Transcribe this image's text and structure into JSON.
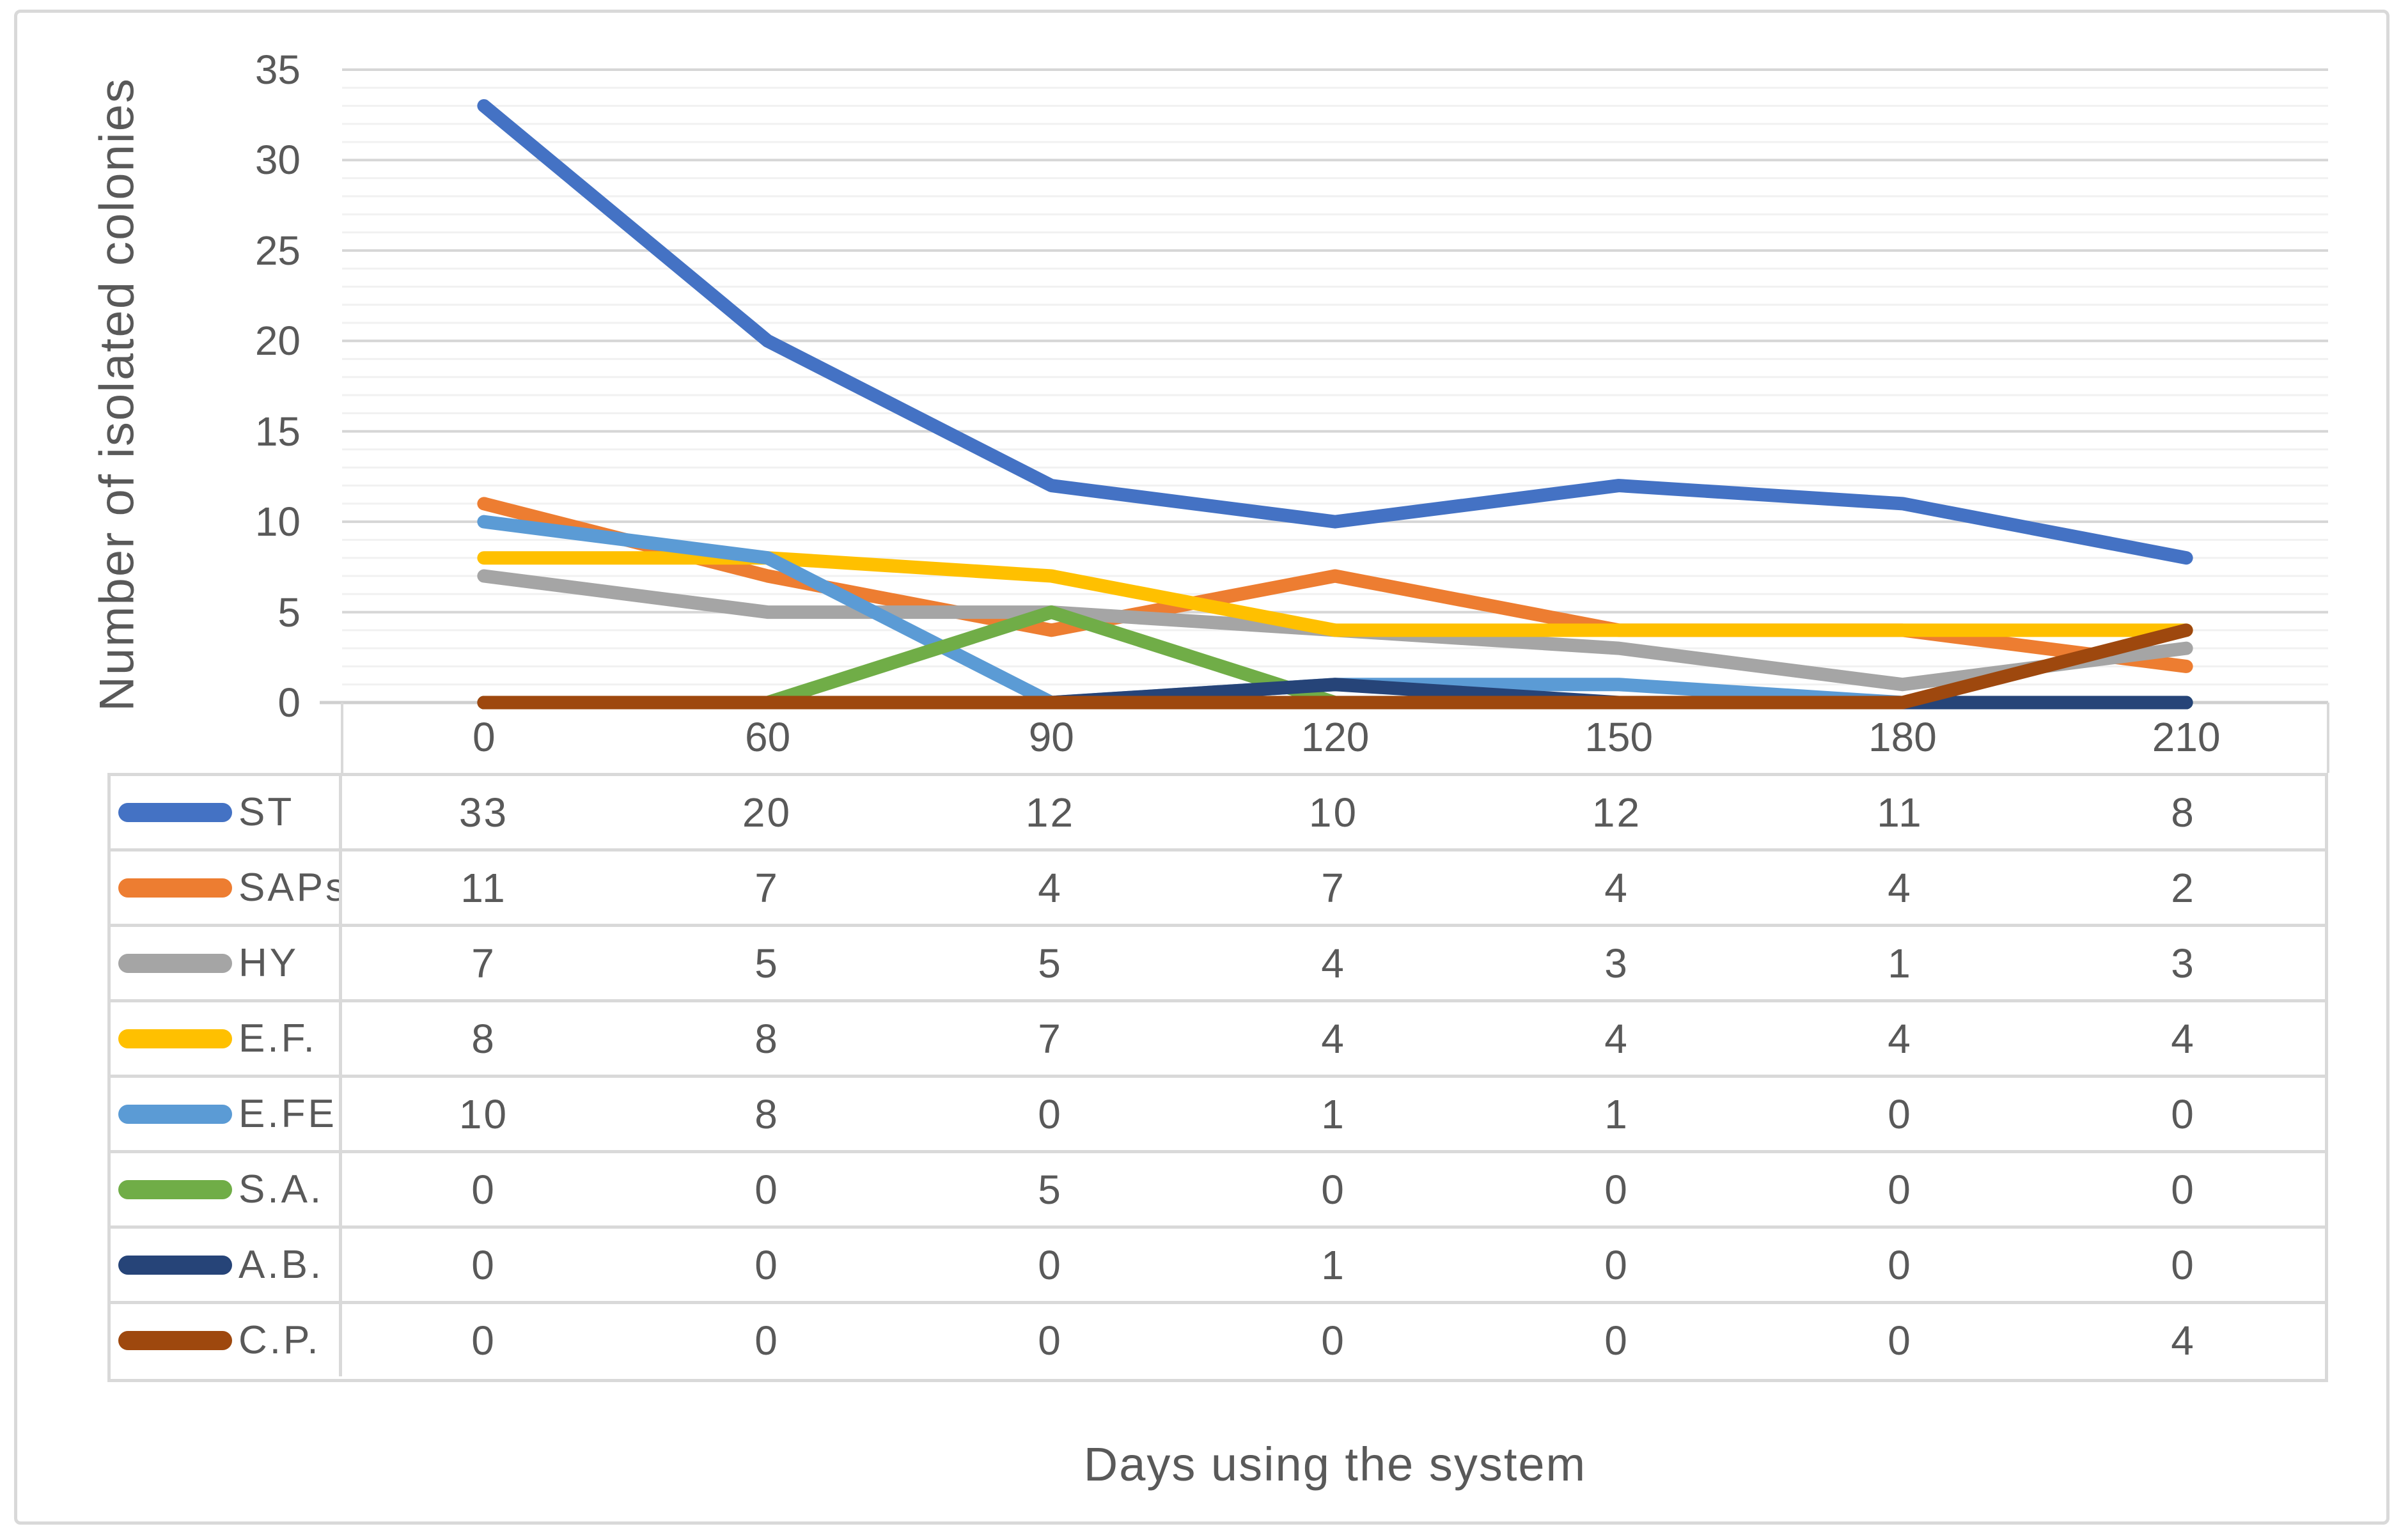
{
  "chart_data": {
    "type": "line",
    "title": "",
    "xlabel": "Days using the system",
    "ylabel": "Number of isolated colonies",
    "categories": [
      "0",
      "60",
      "90",
      "120",
      "150",
      "180",
      "210"
    ],
    "series": [
      {
        "name": "ST",
        "color": "#4472C4",
        "values": [
          33,
          20,
          12,
          10,
          12,
          11,
          8
        ]
      },
      {
        "name": "SAPs",
        "color": "#ED7D31",
        "values": [
          11,
          7,
          4,
          7,
          4,
          4,
          2
        ]
      },
      {
        "name": "HY",
        "color": "#A5A5A5",
        "values": [
          7,
          5,
          5,
          4,
          3,
          1,
          3
        ]
      },
      {
        "name": "E.F.",
        "color": "#FFC000",
        "values": [
          8,
          8,
          7,
          4,
          4,
          4,
          4
        ]
      },
      {
        "name": "E.FE.",
        "color": "#5B9BD5",
        "values": [
          10,
          8,
          0,
          1,
          1,
          0,
          0
        ]
      },
      {
        "name": "S.A.",
        "color": "#70AD47",
        "values": [
          0,
          0,
          5,
          0,
          0,
          0,
          0
        ]
      },
      {
        "name": "A.B.",
        "color": "#264478",
        "values": [
          0,
          0,
          0,
          1,
          0,
          0,
          0
        ]
      },
      {
        "name": "C.P.",
        "color": "#9E480E",
        "values": [
          0,
          0,
          0,
          0,
          0,
          0,
          4
        ]
      }
    ],
    "ylim": [
      0,
      35
    ],
    "y_major_step": 5,
    "y_minor_step": 1,
    "y_tick_labels": [
      "35",
      "30",
      "25",
      "20",
      "15",
      "10",
      "5",
      "0"
    ],
    "grid": "major+minor horizontal gridlines",
    "legend_position": "data-table-left-column"
  },
  "style_colors": {
    "text": "#595959",
    "gridline_major": "#D6D6D6",
    "gridline_minor": "#F1F1F1",
    "axis_line": "#CFCFCF",
    "table_border": "#D9D9D9",
    "frame_border": "#D9D9D9",
    "background": "#FFFFFF"
  }
}
